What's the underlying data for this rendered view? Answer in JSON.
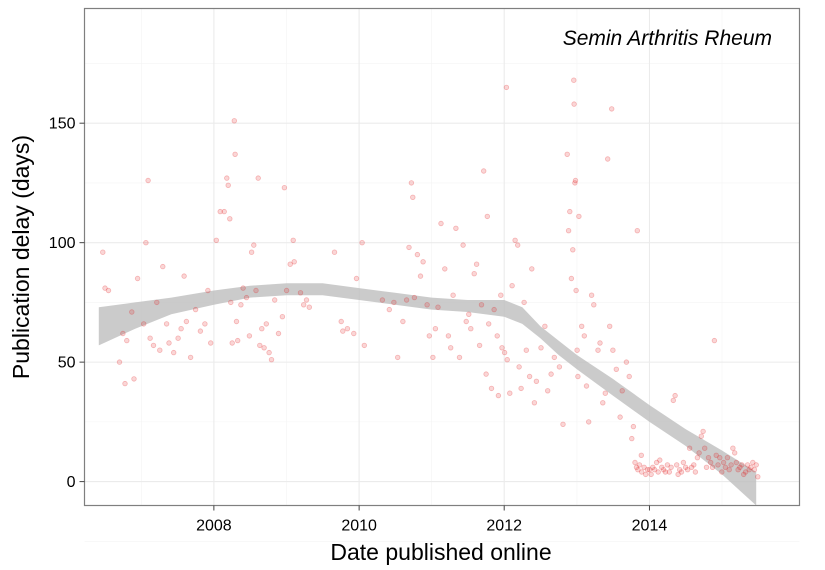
{
  "chart_data": {
    "type": "scatter",
    "annotation": "Semin Arthritis Rheum",
    "xlabel": "Date published online",
    "ylabel": "Publication delay (days)",
    "xlim": [
      "2006-03-21",
      "2016-01-26"
    ],
    "ylim": [
      -10,
      198
    ],
    "x_ticks": [
      "2008-01-01",
      "2010-01-01",
      "2012-01-01",
      "2014-01-01"
    ],
    "x_tick_labels": [
      "2008",
      "2010",
      "2012",
      "2014"
    ],
    "y_ticks": [
      0,
      50,
      100,
      150
    ],
    "y_tick_labels": [
      "0",
      "50",
      "100",
      "150"
    ],
    "grid": true,
    "point_color": "#E41A1C",
    "point_opacity": 0.18,
    "smooth_band_color": "#BEBEBE",
    "points": [
      {
        "x": "2006-06-21",
        "y": 96
      },
      {
        "x": "2006-07-02",
        "y": 81
      },
      {
        "x": "2006-07-20",
        "y": 80
      },
      {
        "x": "2006-09-13",
        "y": 50
      },
      {
        "x": "2006-09-30",
        "y": 62
      },
      {
        "x": "2006-10-11",
        "y": 41
      },
      {
        "x": "2006-10-20",
        "y": 59
      },
      {
        "x": "2006-11-14",
        "y": 71
      },
      {
        "x": "2006-11-25",
        "y": 43
      },
      {
        "x": "2006-12-13",
        "y": 85
      },
      {
        "x": "2007-01-13",
        "y": 66
      },
      {
        "x": "2007-01-24",
        "y": 100
      },
      {
        "x": "2007-02-04",
        "y": 126
      },
      {
        "x": "2007-02-14",
        "y": 60
      },
      {
        "x": "2007-03-03",
        "y": 57
      },
      {
        "x": "2007-03-20",
        "y": 75
      },
      {
        "x": "2007-04-04",
        "y": 55
      },
      {
        "x": "2007-04-19",
        "y": 90
      },
      {
        "x": "2007-05-08",
        "y": 66
      },
      {
        "x": "2007-05-20",
        "y": 58
      },
      {
        "x": "2007-06-13",
        "y": 54
      },
      {
        "x": "2007-07-05",
        "y": 60
      },
      {
        "x": "2007-07-20",
        "y": 64
      },
      {
        "x": "2007-08-04",
        "y": 86
      },
      {
        "x": "2007-08-16",
        "y": 67
      },
      {
        "x": "2007-09-06",
        "y": 52
      },
      {
        "x": "2007-10-01",
        "y": 72
      },
      {
        "x": "2007-10-25",
        "y": 63
      },
      {
        "x": "2007-11-17",
        "y": 66
      },
      {
        "x": "2007-12-02",
        "y": 80
      },
      {
        "x": "2007-12-16",
        "y": 58
      },
      {
        "x": "2008-01-13",
        "y": 101
      },
      {
        "x": "2008-02-02",
        "y": 113
      },
      {
        "x": "2008-02-22",
        "y": 113
      },
      {
        "x": "2008-03-06",
        "y": 127
      },
      {
        "x": "2008-03-13",
        "y": 124
      },
      {
        "x": "2008-03-21",
        "y": 110
      },
      {
        "x": "2008-03-26",
        "y": 75
      },
      {
        "x": "2008-04-02",
        "y": 58
      },
      {
        "x": "2008-04-13",
        "y": 151
      },
      {
        "x": "2008-04-17",
        "y": 137
      },
      {
        "x": "2008-04-24",
        "y": 67
      },
      {
        "x": "2008-04-30",
        "y": 59
      },
      {
        "x": "2008-05-16",
        "y": 74
      },
      {
        "x": "2008-05-27",
        "y": 81
      },
      {
        "x": "2008-06-13",
        "y": 77
      },
      {
        "x": "2008-06-28",
        "y": 61
      },
      {
        "x": "2008-07-09",
        "y": 96
      },
      {
        "x": "2008-07-20",
        "y": 99
      },
      {
        "x": "2008-07-31",
        "y": 80
      },
      {
        "x": "2008-08-11",
        "y": 127
      },
      {
        "x": "2008-08-19",
        "y": 57
      },
      {
        "x": "2008-08-29",
        "y": 64
      },
      {
        "x": "2008-09-10",
        "y": 56
      },
      {
        "x": "2008-09-21",
        "y": 66
      },
      {
        "x": "2008-10-05",
        "y": 54
      },
      {
        "x": "2008-10-17",
        "y": 51
      },
      {
        "x": "2008-11-02",
        "y": 76
      },
      {
        "x": "2008-11-21",
        "y": 62
      },
      {
        "x": "2008-12-11",
        "y": 69
      },
      {
        "x": "2008-12-21",
        "y": 123
      },
      {
        "x": "2009-01-01",
        "y": 80
      },
      {
        "x": "2009-01-19",
        "y": 91
      },
      {
        "x": "2009-02-03",
        "y": 101
      },
      {
        "x": "2009-02-08",
        "y": 92
      },
      {
        "x": "2009-03-12",
        "y": 79
      },
      {
        "x": "2009-03-28",
        "y": 74
      },
      {
        "x": "2009-04-11",
        "y": 76
      },
      {
        "x": "2009-04-25",
        "y": 73
      },
      {
        "x": "2009-08-30",
        "y": 96
      },
      {
        "x": "2009-10-03",
        "y": 67
      },
      {
        "x": "2009-10-11",
        "y": 63
      },
      {
        "x": "2009-11-03",
        "y": 64
      },
      {
        "x": "2009-12-05",
        "y": 62
      },
      {
        "x": "2009-12-19",
        "y": 85
      },
      {
        "x": "2010-01-16",
        "y": 100
      },
      {
        "x": "2010-01-27",
        "y": 57
      },
      {
        "x": "2010-04-28",
        "y": 76
      },
      {
        "x": "2010-06-02",
        "y": 72
      },
      {
        "x": "2010-06-25",
        "y": 75
      },
      {
        "x": "2010-07-14",
        "y": 52
      },
      {
        "x": "2010-08-09",
        "y": 67
      },
      {
        "x": "2010-08-28",
        "y": 76
      },
      {
        "x": "2010-09-09",
        "y": 98
      },
      {
        "x": "2010-09-21",
        "y": 125
      },
      {
        "x": "2010-09-28",
        "y": 119
      },
      {
        "x": "2010-10-06",
        "y": 77
      },
      {
        "x": "2010-10-21",
        "y": 95
      },
      {
        "x": "2010-11-06",
        "y": 86
      },
      {
        "x": "2010-11-19",
        "y": 92
      },
      {
        "x": "2010-12-09",
        "y": 74
      },
      {
        "x": "2010-12-20",
        "y": 61
      },
      {
        "x": "2011-01-07",
        "y": 52
      },
      {
        "x": "2011-01-20",
        "y": 64
      },
      {
        "x": "2011-02-02",
        "y": 73
      },
      {
        "x": "2011-02-17",
        "y": 108
      },
      {
        "x": "2011-03-08",
        "y": 89
      },
      {
        "x": "2011-03-26",
        "y": 61
      },
      {
        "x": "2011-04-07",
        "y": 56
      },
      {
        "x": "2011-04-19",
        "y": 78
      },
      {
        "x": "2011-05-03",
        "y": 106
      },
      {
        "x": "2011-05-21",
        "y": 52
      },
      {
        "x": "2011-06-08",
        "y": 99
      },
      {
        "x": "2011-06-24",
        "y": 67
      },
      {
        "x": "2011-07-07",
        "y": 70
      },
      {
        "x": "2011-07-17",
        "y": 64
      },
      {
        "x": "2011-08-03",
        "y": 87
      },
      {
        "x": "2011-08-15",
        "y": 91
      },
      {
        "x": "2011-08-30",
        "y": 57
      },
      {
        "x": "2011-09-09",
        "y": 74
      },
      {
        "x": "2011-09-20",
        "y": 130
      },
      {
        "x": "2011-10-02",
        "y": 45
      },
      {
        "x": "2011-10-08",
        "y": 111
      },
      {
        "x": "2011-10-15",
        "y": 66
      },
      {
        "x": "2011-10-29",
        "y": 39
      },
      {
        "x": "2011-11-11",
        "y": 72
      },
      {
        "x": "2011-11-27",
        "y": 61
      },
      {
        "x": "2011-12-03",
        "y": 36
      },
      {
        "x": "2011-12-15",
        "y": 78
      },
      {
        "x": "2011-12-21",
        "y": 56
      },
      {
        "x": "2012-01-03",
        "y": 54
      },
      {
        "x": "2012-01-12",
        "y": 165
      },
      {
        "x": "2012-01-16",
        "y": 51
      },
      {
        "x": "2012-01-29",
        "y": 37
      },
      {
        "x": "2012-02-10",
        "y": 82
      },
      {
        "x": "2012-02-25",
        "y": 101
      },
      {
        "x": "2012-03-09",
        "y": 99
      },
      {
        "x": "2012-03-16",
        "y": 48
      },
      {
        "x": "2012-03-26",
        "y": 39
      },
      {
        "x": "2012-04-10",
        "y": 75
      },
      {
        "x": "2012-04-21",
        "y": 55
      },
      {
        "x": "2012-05-08",
        "y": 44
      },
      {
        "x": "2012-05-19",
        "y": 89
      },
      {
        "x": "2012-06-01",
        "y": 33
      },
      {
        "x": "2012-06-11",
        "y": 42
      },
      {
        "x": "2012-07-04",
        "y": 56
      },
      {
        "x": "2012-07-24",
        "y": 65
      },
      {
        "x": "2012-08-07",
        "y": 38
      },
      {
        "x": "2012-08-24",
        "y": 45
      },
      {
        "x": "2012-09-09",
        "y": 52
      },
      {
        "x": "2012-10-05",
        "y": 48
      },
      {
        "x": "2012-10-23",
        "y": 24
      },
      {
        "x": "2012-11-13",
        "y": 137
      },
      {
        "x": "2012-11-20",
        "y": 105
      },
      {
        "x": "2012-11-26",
        "y": 113
      },
      {
        "x": "2012-12-04",
        "y": 85
      },
      {
        "x": "2012-12-11",
        "y": 97
      },
      {
        "x": "2012-12-16",
        "y": 168
      },
      {
        "x": "2012-12-18",
        "y": 158
      },
      {
        "x": "2012-12-22",
        "y": 125
      },
      {
        "x": "2012-12-25",
        "y": 126
      },
      {
        "x": "2012-12-28",
        "y": 80
      },
      {
        "x": "2013-01-02",
        "y": 55
      },
      {
        "x": "2013-01-06",
        "y": 44
      },
      {
        "x": "2013-01-11",
        "y": 111
      },
      {
        "x": "2013-01-25",
        "y": 65
      },
      {
        "x": "2013-02-07",
        "y": 61
      },
      {
        "x": "2013-02-18",
        "y": 40
      },
      {
        "x": "2013-03-01",
        "y": 25
      },
      {
        "x": "2013-03-16",
        "y": 78
      },
      {
        "x": "2013-03-27",
        "y": 74
      },
      {
        "x": "2013-04-17",
        "y": 55
      },
      {
        "x": "2013-04-27",
        "y": 58
      },
      {
        "x": "2013-05-11",
        "y": 33
      },
      {
        "x": "2013-05-24",
        "y": 37
      },
      {
        "x": "2013-06-05",
        "y": 135
      },
      {
        "x": "2013-06-15",
        "y": 65
      },
      {
        "x": "2013-06-25",
        "y": 156
      },
      {
        "x": "2013-07-01",
        "y": 55
      },
      {
        "x": "2013-07-18",
        "y": 47
      },
      {
        "x": "2013-08-06",
        "y": 27
      },
      {
        "x": "2013-08-17",
        "y": 38
      },
      {
        "x": "2013-09-07",
        "y": 50
      },
      {
        "x": "2013-09-21",
        "y": 44
      },
      {
        "x": "2013-10-04",
        "y": 18
      },
      {
        "x": "2013-10-12",
        "y": 23
      },
      {
        "x": "2013-11-01",
        "y": 105
      },
      {
        "x": "2013-11-21",
        "y": 11
      },
      {
        "x": "2013-10-20",
        "y": 8
      },
      {
        "x": "2013-10-28",
        "y": 6
      },
      {
        "x": "2013-11-04",
        "y": 5
      },
      {
        "x": "2013-11-12",
        "y": 7
      },
      {
        "x": "2013-11-23",
        "y": 4
      },
      {
        "x": "2013-12-05",
        "y": 6
      },
      {
        "x": "2013-12-13",
        "y": 3
      },
      {
        "x": "2013-12-22",
        "y": 5
      },
      {
        "x": "2014-01-01",
        "y": 5
      },
      {
        "x": "2014-01-09",
        "y": 3
      },
      {
        "x": "2014-01-18",
        "y": 6
      },
      {
        "x": "2014-01-27",
        "y": 5
      },
      {
        "x": "2014-02-06",
        "y": 8
      },
      {
        "x": "2014-02-14",
        "y": 4
      },
      {
        "x": "2014-02-22",
        "y": 9
      },
      {
        "x": "2014-03-04",
        "y": 6
      },
      {
        "x": "2014-03-13",
        "y": 5
      },
      {
        "x": "2014-03-22",
        "y": 4
      },
      {
        "x": "2014-04-01",
        "y": 7
      },
      {
        "x": "2014-04-11",
        "y": 4
      },
      {
        "x": "2014-04-20",
        "y": 6
      },
      {
        "x": "2014-05-01",
        "y": 34
      },
      {
        "x": "2014-05-10",
        "y": 36
      },
      {
        "x": "2014-05-18",
        "y": 7
      },
      {
        "x": "2014-05-25",
        "y": 3
      },
      {
        "x": "2014-06-02",
        "y": 5
      },
      {
        "x": "2014-06-11",
        "y": 4
      },
      {
        "x": "2014-06-21",
        "y": 8
      },
      {
        "x": "2014-07-02",
        "y": 6
      },
      {
        "x": "2014-07-12",
        "y": 5
      },
      {
        "x": "2014-07-22",
        "y": 14
      },
      {
        "x": "2014-08-01",
        "y": 6
      },
      {
        "x": "2014-08-12",
        "y": 7
      },
      {
        "x": "2014-08-20",
        "y": 4
      },
      {
        "x": "2014-08-30",
        "y": 10
      },
      {
        "x": "2014-09-08",
        "y": 12
      },
      {
        "x": "2014-09-19",
        "y": 19
      },
      {
        "x": "2014-09-28",
        "y": 21
      },
      {
        "x": "2014-10-06",
        "y": 14
      },
      {
        "x": "2014-10-15",
        "y": 6
      },
      {
        "x": "2014-10-25",
        "y": 10
      },
      {
        "x": "2014-11-05",
        "y": 8
      },
      {
        "x": "2014-11-14",
        "y": 6
      },
      {
        "x": "2014-11-24",
        "y": 59
      },
      {
        "x": "2014-12-03",
        "y": 11
      },
      {
        "x": "2014-12-12",
        "y": 7
      },
      {
        "x": "2014-12-21",
        "y": 10
      },
      {
        "x": "2014-12-31",
        "y": 4
      },
      {
        "x": "2015-01-09",
        "y": 8
      },
      {
        "x": "2015-01-18",
        "y": 6
      },
      {
        "x": "2015-01-28",
        "y": 10
      },
      {
        "x": "2015-02-06",
        "y": 5
      },
      {
        "x": "2015-02-16",
        "y": 7
      },
      {
        "x": "2015-02-25",
        "y": 14
      },
      {
        "x": "2015-03-06",
        "y": 12
      },
      {
        "x": "2015-03-14",
        "y": 8
      },
      {
        "x": "2015-03-23",
        "y": 5
      },
      {
        "x": "2015-04-01",
        "y": 6
      },
      {
        "x": "2015-04-11",
        "y": 7
      },
      {
        "x": "2015-04-20",
        "y": 3
      },
      {
        "x": "2015-04-30",
        "y": 4
      },
      {
        "x": "2015-05-10",
        "y": 7
      },
      {
        "x": "2015-05-18",
        "y": 5
      },
      {
        "x": "2015-05-27",
        "y": 6
      },
      {
        "x": "2015-06-05",
        "y": 8
      },
      {
        "x": "2015-06-13",
        "y": 5
      },
      {
        "x": "2015-06-22",
        "y": 7
      },
      {
        "x": "2015-06-30",
        "y": 2
      }
    ],
    "smooth_band": [
      {
        "x": "2006-06-01",
        "lower": 57,
        "upper": 73
      },
      {
        "x": "2006-12-01",
        "lower": 64,
        "upper": 75
      },
      {
        "x": "2007-06-01",
        "lower": 70,
        "upper": 77
      },
      {
        "x": "2008-01-01",
        "lower": 74,
        "upper": 80
      },
      {
        "x": "2008-07-01",
        "lower": 77,
        "upper": 82
      },
      {
        "x": "2009-01-01",
        "lower": 78,
        "upper": 83
      },
      {
        "x": "2009-07-01",
        "lower": 78,
        "upper": 83
      },
      {
        "x": "2010-01-01",
        "lower": 76,
        "upper": 81
      },
      {
        "x": "2010-07-01",
        "lower": 74,
        "upper": 79
      },
      {
        "x": "2011-01-01",
        "lower": 72,
        "upper": 77
      },
      {
        "x": "2011-07-01",
        "lower": 71,
        "upper": 76
      },
      {
        "x": "2012-01-01",
        "lower": 69,
        "upper": 76
      },
      {
        "x": "2012-04-01",
        "lower": 66,
        "upper": 73
      },
      {
        "x": "2012-07-01",
        "lower": 60,
        "upper": 65
      },
      {
        "x": "2012-10-01",
        "lower": 53,
        "upper": 59
      },
      {
        "x": "2013-01-01",
        "lower": 47,
        "upper": 53
      },
      {
        "x": "2013-07-01",
        "lower": 36,
        "upper": 43
      },
      {
        "x": "2014-01-01",
        "lower": 25,
        "upper": 32
      },
      {
        "x": "2014-07-01",
        "lower": 15,
        "upper": 22
      },
      {
        "x": "2015-01-01",
        "lower": 3,
        "upper": 13
      },
      {
        "x": "2015-06-22",
        "lower": -10,
        "upper": 4
      }
    ]
  }
}
